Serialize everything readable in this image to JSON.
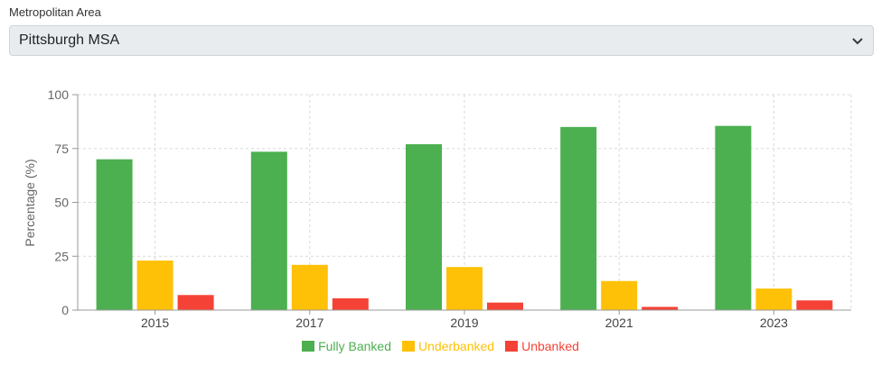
{
  "filter": {
    "label": "Metropolitan Area",
    "selected": "Pittsburgh MSA"
  },
  "chart_data": {
    "type": "bar",
    "categories": [
      "2015",
      "2017",
      "2019",
      "2021",
      "2023"
    ],
    "series": [
      {
        "name": "Fully Banked",
        "color": "#4caf50",
        "values": [
          70,
          73.5,
          77,
          85,
          85.5
        ]
      },
      {
        "name": "Underbanked",
        "color": "#ffc107",
        "values": [
          23,
          21,
          20,
          13.5,
          10
        ]
      },
      {
        "name": "Unbanked",
        "color": "#f44336",
        "values": [
          7,
          5.5,
          3.5,
          1.5,
          4.5
        ]
      }
    ],
    "ylabel": "Percentage (%)",
    "ylim": [
      0,
      100
    ],
    "yticks": [
      "0",
      "25",
      "50",
      "75",
      "100"
    ],
    "grid": true,
    "legend_position": "bottom"
  }
}
